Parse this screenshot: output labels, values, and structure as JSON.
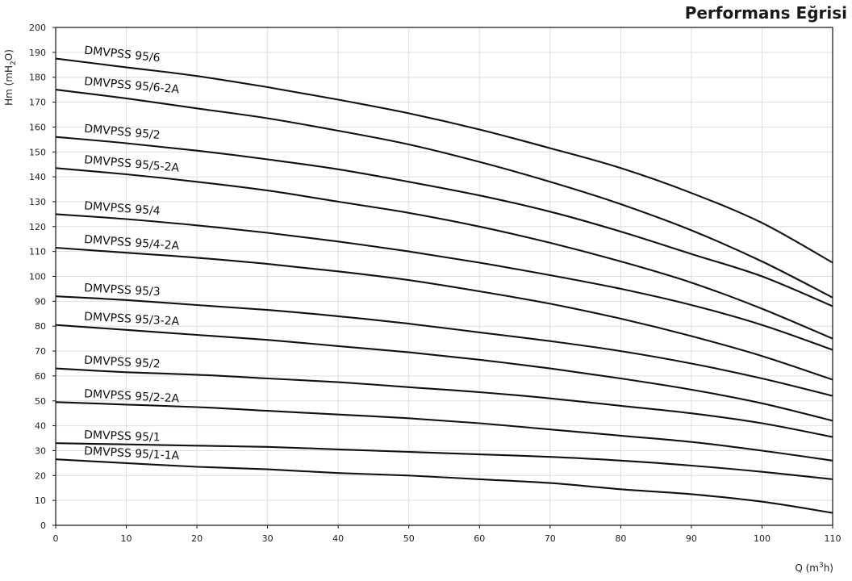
{
  "title": "Performans Eğrisi",
  "chart_data": {
    "type": "line",
    "title": "Performans Eğrisi",
    "ylabel_parts": [
      "Hm (mH",
      "2",
      "O)"
    ],
    "xlabel_parts": [
      "Q (m",
      "3",
      "h)"
    ],
    "xlim": [
      0,
      110
    ],
    "ylim": [
      0,
      200
    ],
    "xticks": [
      0,
      10,
      20,
      30,
      40,
      50,
      60,
      70,
      80,
      90,
      100,
      110
    ],
    "yticks": [
      0,
      10,
      20,
      30,
      40,
      50,
      60,
      70,
      80,
      90,
      100,
      110,
      120,
      130,
      140,
      150,
      160,
      170,
      180,
      190,
      200
    ],
    "grid": true,
    "series": [
      {
        "name": "DMVPSS 95/6",
        "label_angle": 6,
        "x": [
          0,
          10,
          20,
          30,
          40,
          50,
          60,
          70,
          80,
          90,
          100,
          110
        ],
        "y": [
          187.5,
          184,
          180.5,
          176,
          171,
          165.5,
          159,
          151.5,
          143.5,
          133.5,
          121.5,
          105.5
        ]
      },
      {
        "name": "DMVPSS 95/6-2A",
        "label_angle": 5,
        "x": [
          0,
          10,
          20,
          30,
          40,
          50,
          60,
          70,
          80,
          90,
          100,
          110
        ],
        "y": [
          175,
          171.5,
          167.5,
          163.5,
          158.5,
          153,
          146,
          138,
          129,
          118.5,
          106,
          91.5
        ]
      },
      {
        "name": "DMVPSS 95/2",
        "label_angle": 5,
        "x": [
          0,
          10,
          20,
          30,
          40,
          50,
          60,
          70,
          80,
          90,
          100,
          110
        ],
        "y": [
          156,
          153.5,
          150.5,
          147,
          143,
          138,
          132.5,
          126,
          118,
          109,
          100,
          88
        ]
      },
      {
        "name": "DMVPSS 95/5-2A",
        "label_angle": 5,
        "x": [
          0,
          10,
          20,
          30,
          40,
          50,
          60,
          70,
          80,
          90,
          100,
          110
        ],
        "y": [
          143.5,
          141,
          138,
          134.5,
          130,
          125.5,
          120,
          113.5,
          106,
          97.5,
          87,
          75
        ]
      },
      {
        "name": "DMVPSS 95/4",
        "label_angle": 4,
        "x": [
          0,
          10,
          20,
          30,
          40,
          50,
          60,
          70,
          80,
          90,
          100,
          110
        ],
        "y": [
          125,
          123,
          120.5,
          117.5,
          114,
          110,
          105.5,
          100.5,
          95,
          88.5,
          80.5,
          70.5
        ]
      },
      {
        "name": "DMVPSS 95/4-2A",
        "label_angle": 4,
        "x": [
          0,
          10,
          20,
          30,
          40,
          50,
          60,
          70,
          80,
          90,
          100,
          110
        ],
        "y": [
          111.5,
          109.5,
          107.5,
          105,
          102,
          98.5,
          94,
          89,
          83,
          76,
          68,
          58.5
        ]
      },
      {
        "name": "DMVPSS 95/3",
        "label_angle": 3,
        "x": [
          0,
          10,
          20,
          30,
          40,
          50,
          60,
          70,
          80,
          90,
          100,
          110
        ],
        "y": [
          92,
          90.5,
          88.5,
          86.5,
          84,
          81,
          77.5,
          74,
          70,
          65,
          59,
          52
        ]
      },
      {
        "name": "DMVPSS 95/3-2A",
        "label_angle": 3,
        "x": [
          0,
          10,
          20,
          30,
          40,
          50,
          60,
          70,
          80,
          90,
          100,
          110
        ],
        "y": [
          80.5,
          78.5,
          76.5,
          74.5,
          72,
          69.5,
          66.5,
          63,
          59,
          54.5,
          49,
          42
        ]
      },
      {
        "name": "DMVPSS 95/2",
        "label_angle": 3,
        "x": [
          0,
          10,
          20,
          30,
          40,
          50,
          60,
          70,
          80,
          90,
          100,
          110
        ],
        "y": [
          63,
          61.5,
          60.5,
          59,
          57.5,
          55.5,
          53.5,
          51,
          48,
          45,
          41,
          35.5
        ]
      },
      {
        "name": "DMVPSS 95/2-2A",
        "label_angle": 3,
        "x": [
          0,
          10,
          20,
          30,
          40,
          50,
          60,
          70,
          80,
          90,
          100,
          110
        ],
        "y": [
          49.5,
          48.5,
          47.5,
          46,
          44.5,
          43,
          41,
          38.5,
          36,
          33.5,
          30,
          26
        ]
      },
      {
        "name": "DMVPSS 95/1",
        "label_angle": 2,
        "x": [
          0,
          10,
          20,
          30,
          40,
          50,
          60,
          70,
          80,
          90,
          100,
          110
        ],
        "y": [
          33,
          32.5,
          32,
          31.5,
          30.5,
          29.5,
          28.5,
          27.5,
          26,
          24,
          21.5,
          18.5
        ]
      },
      {
        "name": "DMVPSS 95/1-1A",
        "label_angle": 3,
        "x": [
          0,
          10,
          20,
          30,
          40,
          50,
          60,
          70,
          80,
          90,
          100,
          110
        ],
        "y": [
          26.5,
          25,
          23.5,
          22.5,
          21,
          20,
          18.5,
          17,
          14.5,
          12.5,
          9.5,
          5
        ]
      }
    ]
  }
}
